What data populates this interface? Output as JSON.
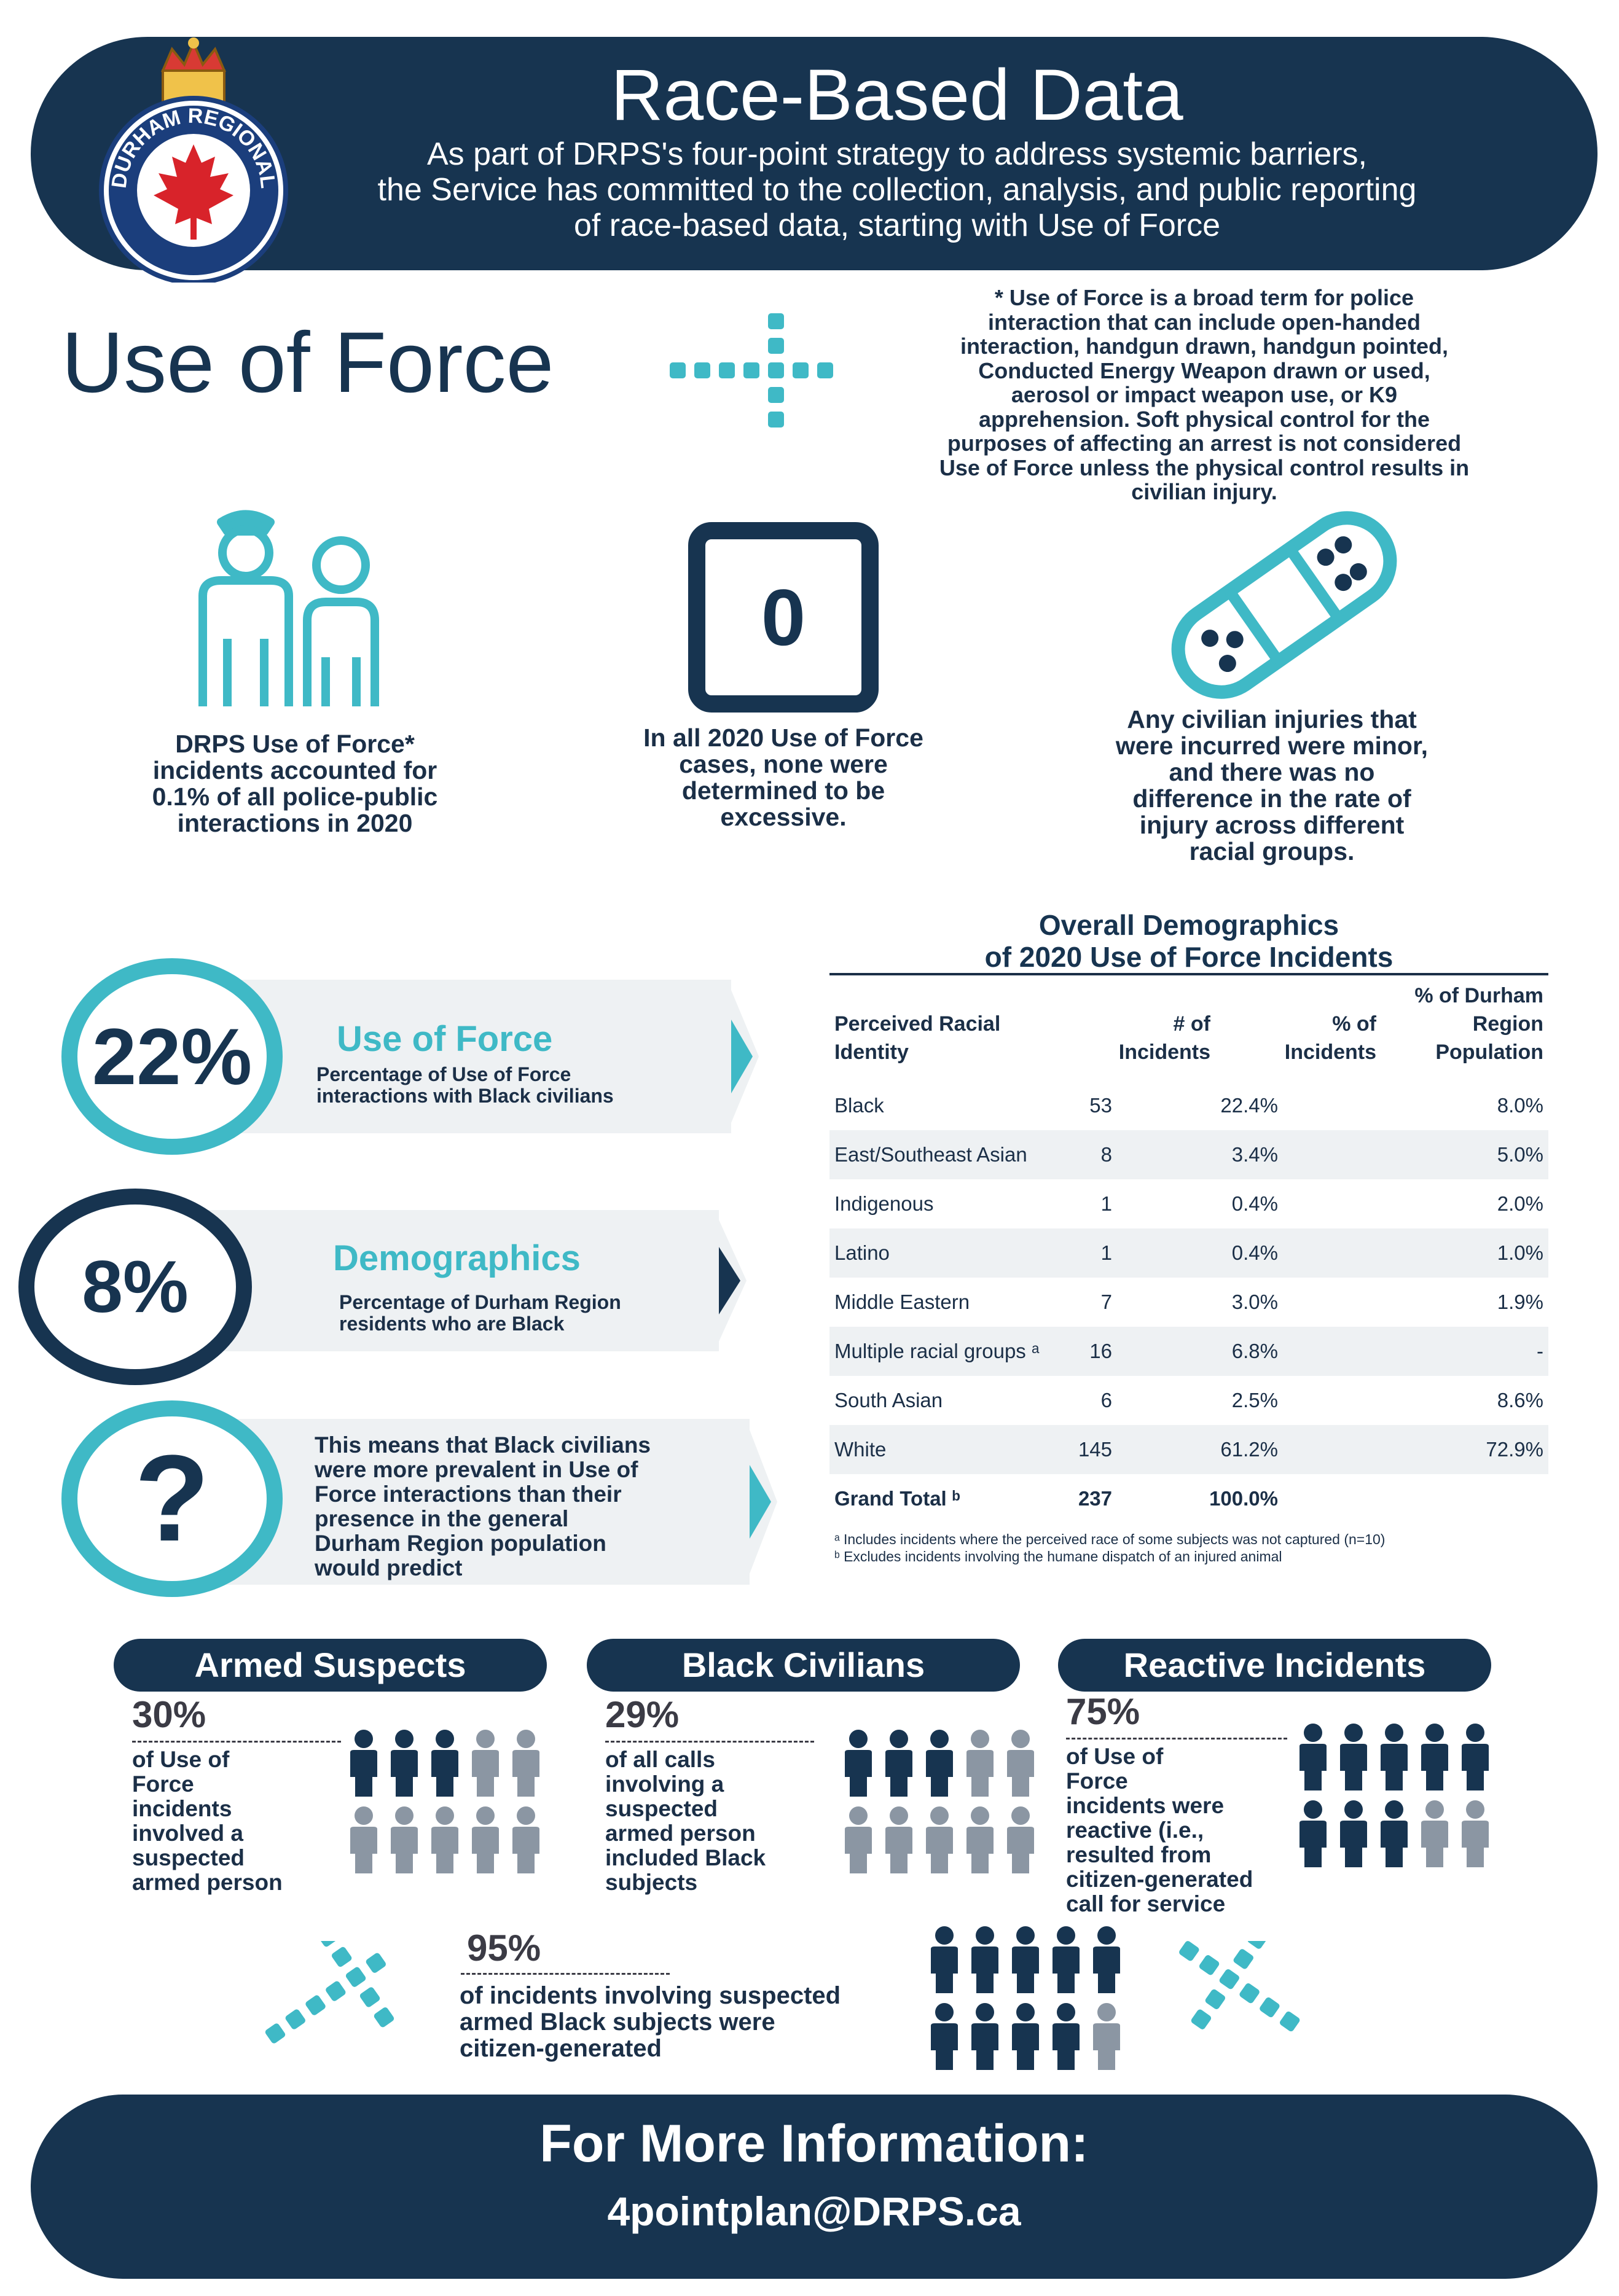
{
  "header": {
    "title": "Race-Based Data",
    "subtitle_lines": [
      "As part of DRPS's four-point strategy to address systemic barriers,",
      "the Service has committed to the collection, analysis, and public reporting",
      "of race-based data, starting with Use of Force"
    ],
    "logo_text": "DURHAM REGIONAL POLICE"
  },
  "use_of_force": {
    "title": "Use of Force",
    "note_lines": [
      "* Use of Force is a broad term for police",
      "interaction that can include open-handed",
      "interaction, handgun drawn, handgun pointed,",
      "Conducted Energy Weapon drawn or used,",
      "aerosol or impact weapon use, or K9",
      "apprehension. Soft physical control for the",
      "purposes of affecting an arrest is not considered",
      "Use of Force unless the physical control results in",
      "civilian injury."
    ]
  },
  "stats": {
    "s1": [
      "DRPS Use of Force*",
      "incidents accounted for",
      "0.1% of all police-public",
      "interactions in 2020"
    ],
    "s2_icon_value": "0",
    "s2": [
      "In all 2020 Use of Force",
      "cases, none were",
      "determined to be",
      "excessive."
    ],
    "s3": [
      "Any civilian injuries that",
      "were incurred were minor,",
      "and there was no",
      "difference in the rate of",
      "injury across different",
      "racial groups."
    ]
  },
  "bands": {
    "b1": {
      "value": "22%",
      "title": "Use of Force",
      "desc": [
        "Percentage of Use of Force",
        "interactions with Black civilians"
      ]
    },
    "b2": {
      "value": "8%",
      "title": "Demographics",
      "desc": [
        "Percentage of Durham Region",
        "residents who are Black"
      ]
    },
    "b3": {
      "value": "?",
      "desc": [
        "This means that Black civilians",
        "were more prevalent in Use of",
        "Force interactions than their",
        "presence in the general",
        "Durham Region population",
        "would predict"
      ]
    }
  },
  "table": {
    "title_lines": [
      "Overall Demographics",
      "of 2020 Use of Force Incidents"
    ],
    "headers": {
      "c1": [
        "Perceived Racial",
        "Identity"
      ],
      "c2": [
        "# of",
        "Incidents"
      ],
      "c3": [
        "% of",
        "Incidents"
      ],
      "c4": [
        "% of Durham",
        "Region",
        "Population"
      ]
    },
    "rows": [
      [
        "Black",
        "53",
        "22.4%",
        "8.0%"
      ],
      [
        "East/Southeast Asian",
        "8",
        "3.4%",
        "5.0%"
      ],
      [
        "Indigenous",
        "1",
        "0.4%",
        "2.0%"
      ],
      [
        "Latino",
        "1",
        "0.4%",
        "1.0%"
      ],
      [
        "Middle Eastern",
        "7",
        "3.0%",
        "1.9%"
      ],
      [
        "Multiple racial groups ᵃ",
        "16",
        "6.8%",
        "-"
      ],
      [
        "South Asian",
        "6",
        "2.5%",
        "8.6%"
      ],
      [
        "White",
        "145",
        "61.2%",
        "72.9%"
      ]
    ],
    "total": [
      "Grand Total ᵇ",
      "237",
      "100.0%",
      ""
    ],
    "footnotes": [
      "ᵃ Includes incidents where the perceived race of some subjects was not captured (n=10)",
      "ᵇ Excludes incidents involving the humane dispatch of an injured animal"
    ]
  },
  "panels": {
    "armed": {
      "title": "Armed Suspects",
      "pct": "30%",
      "text": [
        "of Use of",
        "Force",
        "incidents",
        "involved a",
        "suspected",
        "armed person"
      ],
      "share": 0.3
    },
    "black": {
      "title": "Black Civilians",
      "pct": "29%",
      "text": [
        "of all calls",
        "involving a",
        "suspected",
        "armed person",
        "included Black",
        "subjects"
      ],
      "share": 0.3
    },
    "reactive": {
      "title": "Reactive Incidents",
      "pct": "75%",
      "text": [
        "of Use of",
        "Force",
        "incidents were",
        "reactive (i.e.,",
        "resulted from",
        "citizen-generated",
        "call for service"
      ],
      "share": 0.8
    },
    "citizen": {
      "pct": "95%",
      "text": [
        "of incidents involving suspected",
        "armed Black subjects were",
        "citizen-generated"
      ],
      "share": 0.9
    }
  },
  "footer": {
    "title": "For More Information:",
    "email": "4pointplan@DRPS.ca"
  },
  "colors": {
    "navy": "#173450",
    "teal": "#3fb9c6",
    "grey": "#8b96a3",
    "band": "#eef1f3"
  }
}
